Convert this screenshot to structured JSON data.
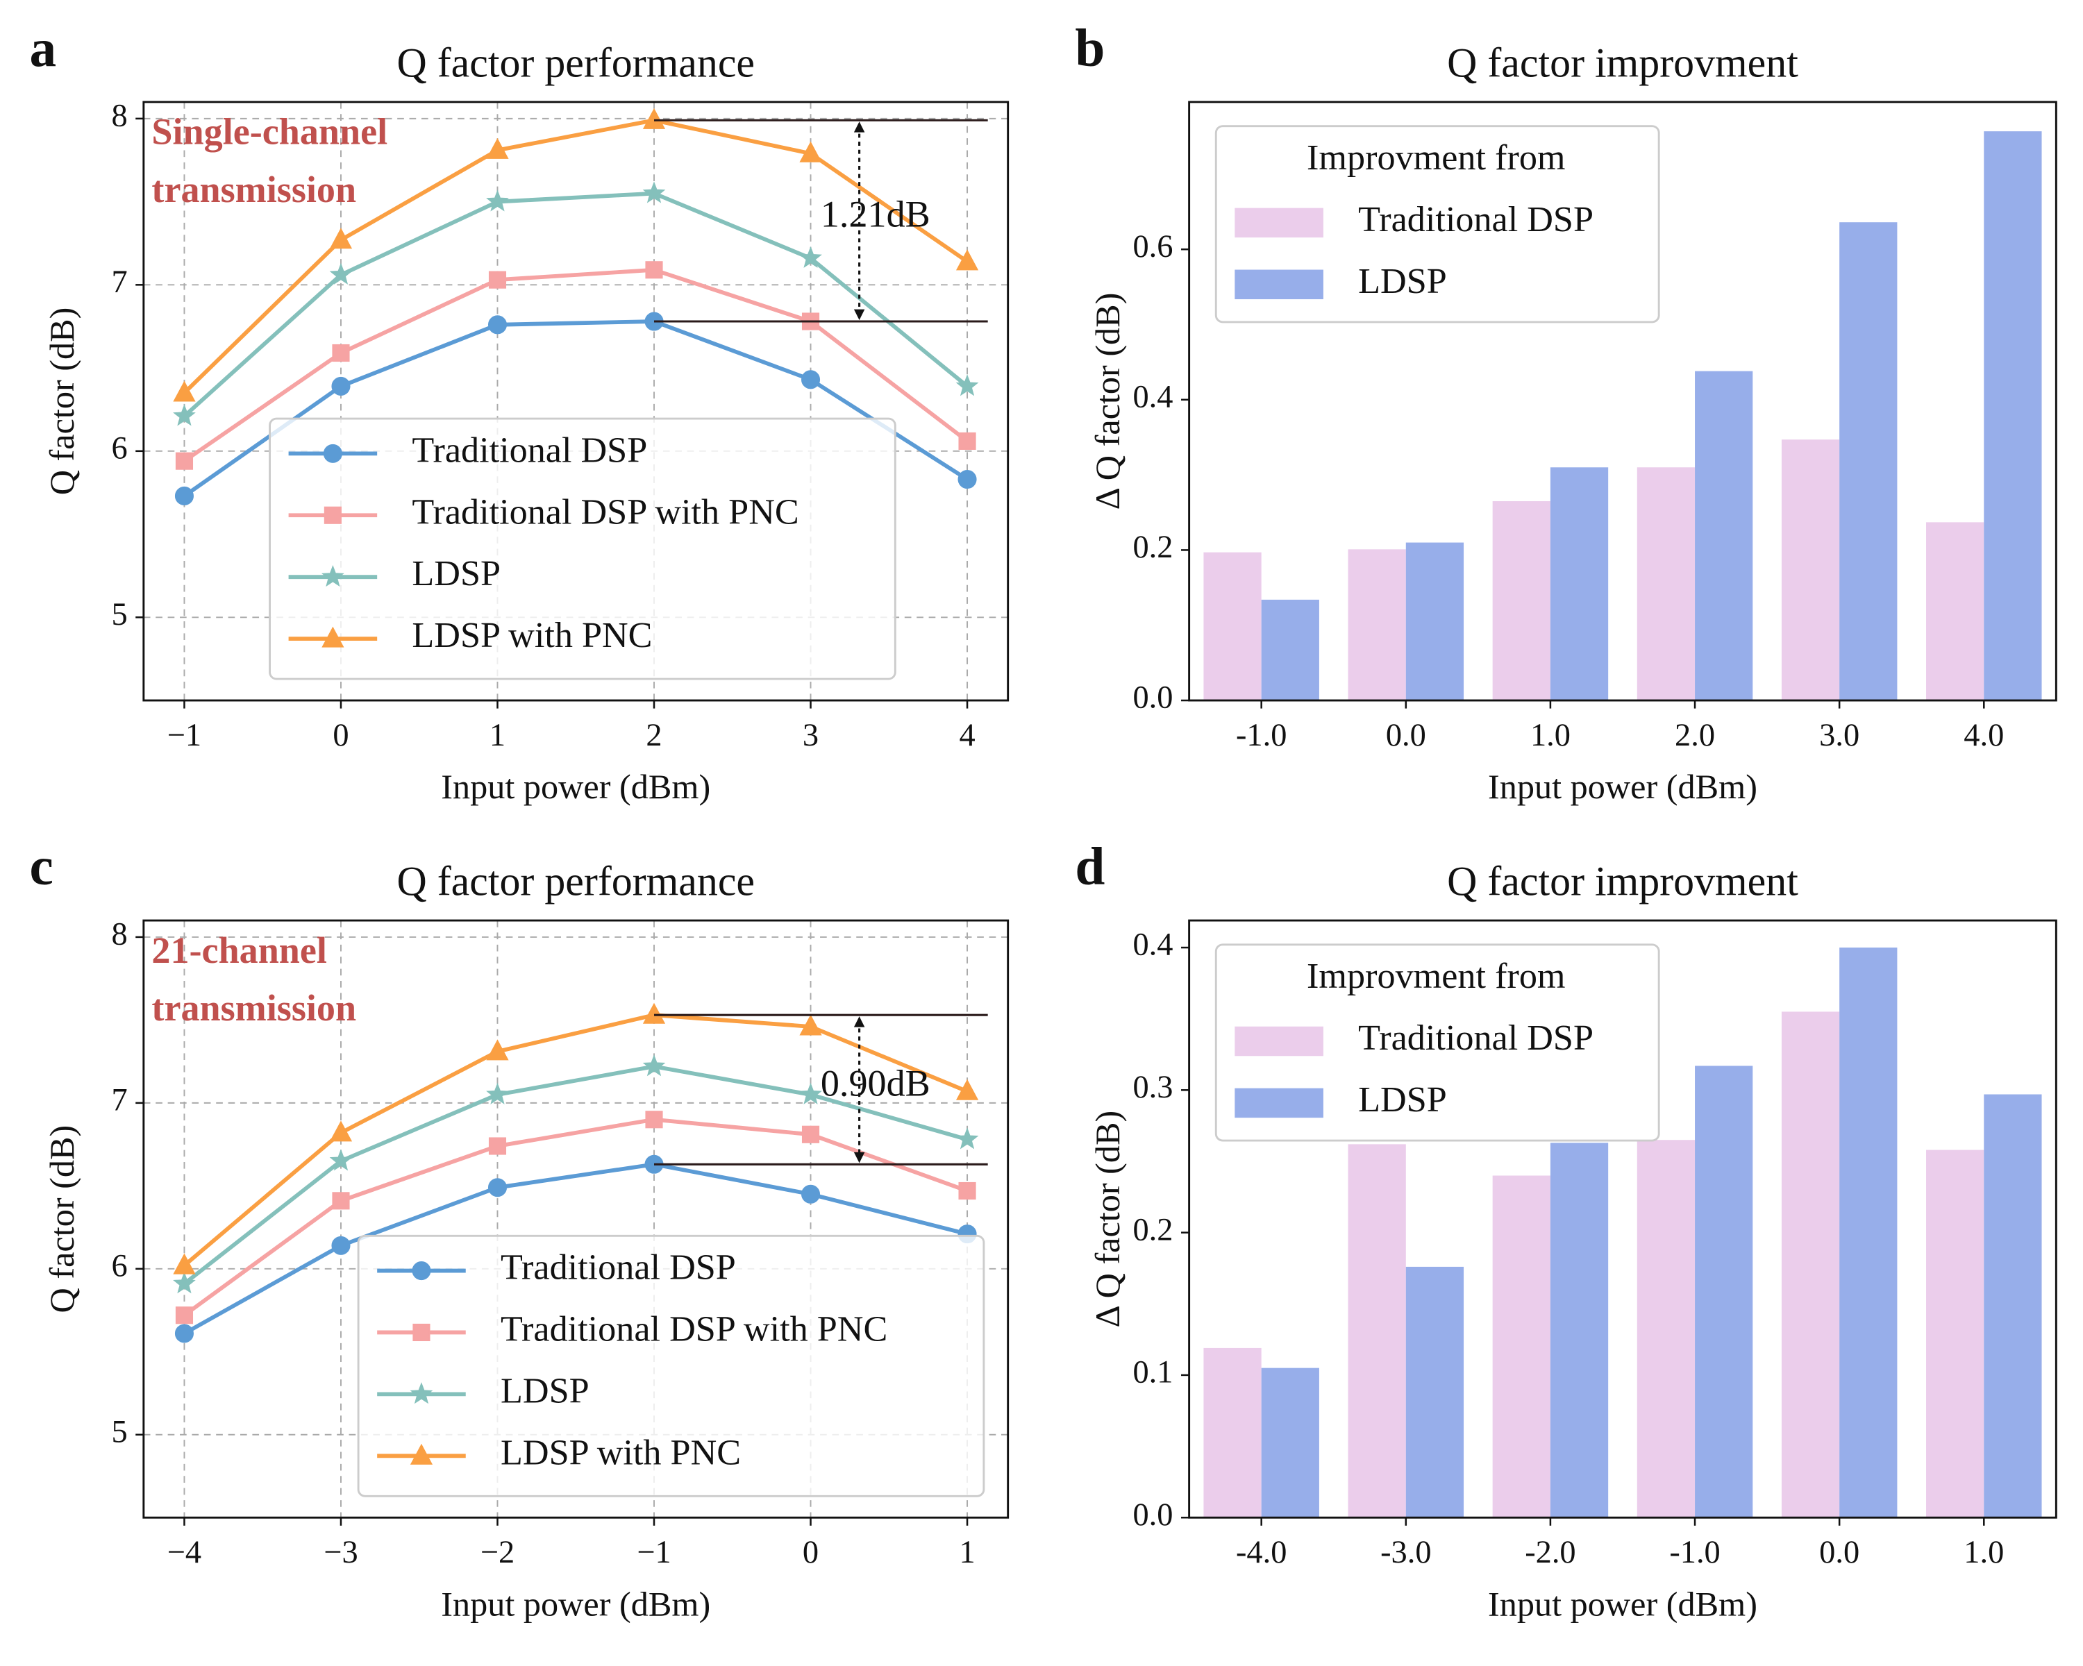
{
  "chart_data": [
    {
      "type": "line",
      "panel_label": "a",
      "title": "Q factor performance",
      "xlabel": "Input power (dBm)",
      "ylabel": "Q factor (dB)",
      "x": [
        -1,
        0,
        1,
        2,
        3,
        4
      ],
      "series": [
        {
          "name": "Traditional DSP",
          "color": "#5b9bd5",
          "marker": "circle",
          "values": [
            5.73,
            6.39,
            6.76,
            6.78,
            6.43,
            5.83
          ]
        },
        {
          "name": "Traditional DSP with PNC",
          "color": "#f6a3a3",
          "marker": "square",
          "values": [
            5.94,
            6.59,
            7.03,
            7.09,
            6.78,
            6.06
          ]
        },
        {
          "name": "LDSP",
          "color": "#84c0bb",
          "marker": "star",
          "values": [
            6.21,
            7.06,
            7.5,
            7.55,
            7.16,
            6.39
          ]
        },
        {
          "name": "LDSP with PNC",
          "color": "#fa9f42",
          "marker": "triangle",
          "values": [
            6.35,
            7.27,
            7.81,
            7.99,
            7.79,
            7.14
          ]
        }
      ],
      "xlim": [
        -1.26,
        4.26
      ],
      "ylim": [
        4.5,
        8.1
      ],
      "xticks": [
        {
          "value": -1,
          "label": "−1"
        },
        0,
        1,
        2,
        3,
        4
      ],
      "yticks": [
        5,
        6,
        7,
        8
      ],
      "grid": true,
      "legend": "lower center",
      "text_box": [
        "Single-channel",
        "transmission"
      ],
      "text_box_color": "#c0504d",
      "annotation": "1.21dB"
    },
    {
      "type": "bar",
      "panel_label": "b",
      "title": "Q factor improvment",
      "xlabel": "Input power (dBm)",
      "ylabel": "Δ Q factor (dB)",
      "categories": [
        "-1.0",
        "0.0",
        "1.0",
        "2.0",
        "3.0",
        "4.0"
      ],
      "series": [
        {
          "name": "Traditional DSP",
          "color": "#ebcdeb",
          "values": [
            0.197,
            0.201,
            0.265,
            0.31,
            0.347,
            0.237
          ]
        },
        {
          "name": "LDSP",
          "color": "#97aeea",
          "values": [
            0.134,
            0.21,
            0.31,
            0.438,
            0.636,
            0.757
          ]
        }
      ],
      "ylim": [
        0,
        0.796
      ],
      "yticks": [
        {
          "value": 0,
          "label": "0.0"
        },
        0.2,
        0.4,
        0.6
      ],
      "grid": false,
      "legend": "upper left",
      "legend_title": "Improvment from"
    },
    {
      "type": "line",
      "panel_label": "c",
      "title": "Q factor performance",
      "xlabel": "Input power (dBm)",
      "ylabel": "Q factor (dB)",
      "x": [
        -4,
        -3,
        -2,
        -1,
        0,
        1
      ],
      "series": [
        {
          "name": "Traditional DSP",
          "color": "#5b9bd5",
          "marker": "circle",
          "values": [
            5.61,
            6.14,
            6.49,
            6.63,
            6.45,
            6.21
          ]
        },
        {
          "name": "Traditional DSP with PNC",
          "color": "#f6a3a3",
          "marker": "square",
          "values": [
            5.72,
            6.41,
            6.74,
            6.9,
            6.81,
            6.47
          ]
        },
        {
          "name": "LDSP",
          "color": "#84c0bb",
          "marker": "star",
          "values": [
            5.91,
            6.65,
            7.05,
            7.22,
            7.05,
            6.78
          ]
        },
        {
          "name": "LDSP with PNC",
          "color": "#fa9f42",
          "marker": "triangle",
          "values": [
            6.02,
            6.82,
            7.31,
            7.53,
            7.46,
            7.07
          ]
        }
      ],
      "xlim": [
        -4.26,
        1.26
      ],
      "ylim": [
        4.5,
        8.1
      ],
      "xticks": [
        {
          "value": -4,
          "label": "−4"
        },
        {
          "value": -3,
          "label": "−3"
        },
        {
          "value": -2,
          "label": "−2"
        },
        {
          "value": -1,
          "label": "−1"
        },
        0,
        1
      ],
      "yticks": [
        5,
        6,
        7,
        8
      ],
      "grid": true,
      "legend": "lower right",
      "text_box": [
        "21-channel",
        "transmission"
      ],
      "text_box_color": "#c0504d",
      "annotation": "0.90dB"
    },
    {
      "type": "bar",
      "panel_label": "d",
      "title": "Q factor improvment",
      "xlabel": "Input power (dBm)",
      "ylabel": "Δ Q factor (dB)",
      "categories": [
        "-4.0",
        "-3.0",
        "-2.0",
        "-1.0",
        "0.0",
        "1.0"
      ],
      "series": [
        {
          "name": "Traditional DSP",
          "color": "#ebcdeb",
          "values": [
            0.119,
            0.262,
            0.24,
            0.265,
            0.355,
            0.258
          ]
        },
        {
          "name": "LDSP",
          "color": "#97aeea",
          "values": [
            0.105,
            0.176,
            0.263,
            0.317,
            0.4,
            0.297
          ]
        }
      ],
      "ylim": [
        0,
        0.419
      ],
      "yticks": [
        {
          "value": 0,
          "label": "0.0"
        },
        0.1,
        0.2,
        0.3,
        0.4
      ],
      "grid": false,
      "legend": "upper left",
      "legend_title": "Improvment from"
    }
  ]
}
